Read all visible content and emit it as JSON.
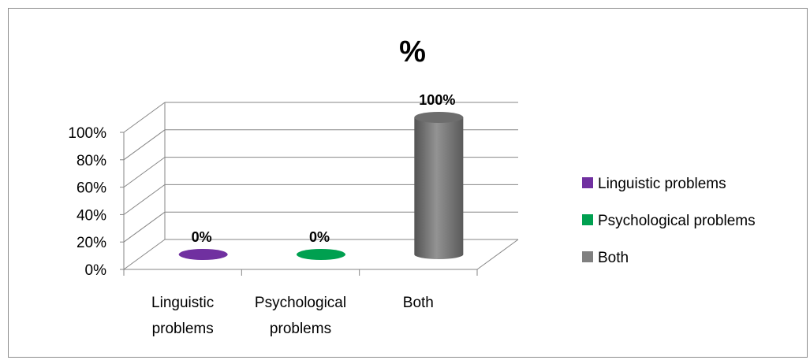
{
  "chart_data": {
    "type": "bar",
    "title": "%",
    "categories": [
      "Linguistic problems",
      "Psychological problems",
      "Both"
    ],
    "category_lines": [
      [
        "Linguistic",
        "problems"
      ],
      [
        "Psychological",
        "problems"
      ],
      [
        "Both"
      ]
    ],
    "series": [
      {
        "name": "Linguistic problems",
        "values": [
          0,
          null,
          null
        ],
        "color": "#7030A0"
      },
      {
        "name": "Psychological problems",
        "values": [
          null,
          0,
          null
        ],
        "color": "#00A050"
      },
      {
        "name": "Both",
        "values": [
          null,
          null,
          100
        ],
        "color": "#808080"
      }
    ],
    "values": [
      0,
      0,
      100
    ],
    "data_labels": [
      "0%",
      "0%",
      "100%"
    ],
    "colors": [
      "#7030A0",
      "#00A050",
      "#808080"
    ],
    "ylim": [
      0,
      100
    ],
    "yticks": [
      "0%",
      "20%",
      "40%",
      "60%",
      "80%",
      "100%"
    ],
    "ytick_values": [
      0,
      20,
      40,
      60,
      80,
      100
    ],
    "grid": true,
    "legend_position": "right",
    "style": "3d-cylinder"
  }
}
